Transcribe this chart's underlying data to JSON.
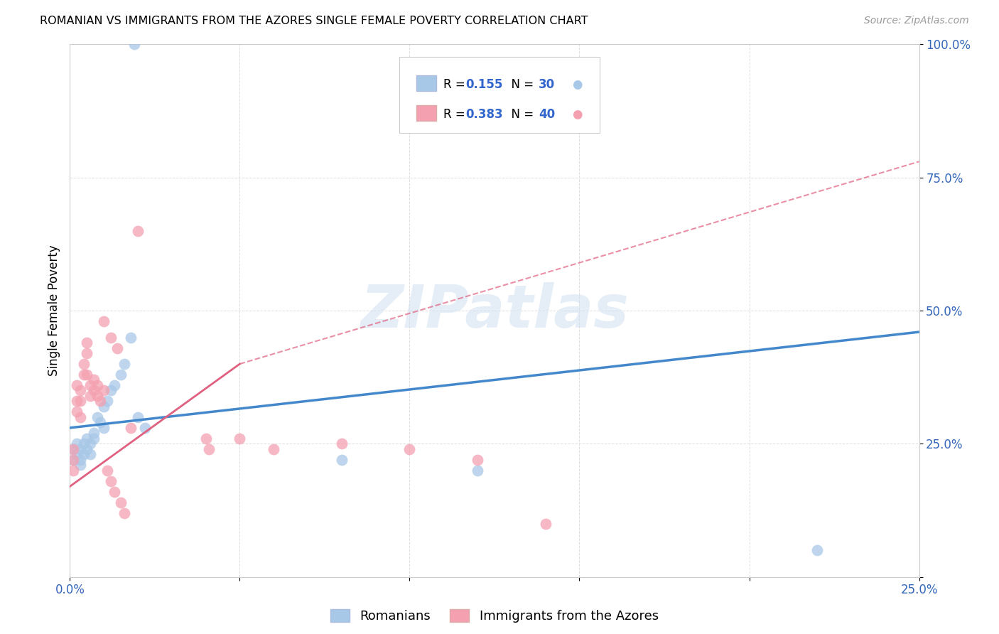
{
  "title": "ROMANIAN VS IMMIGRANTS FROM THE AZORES SINGLE FEMALE POVERTY CORRELATION CHART",
  "source": "Source: ZipAtlas.com",
  "ylabel": "Single Female Poverty",
  "xlim": [
    0.0,
    0.25
  ],
  "ylim": [
    0.0,
    1.0
  ],
  "xtick_positions": [
    0.0,
    0.05,
    0.1,
    0.15,
    0.2,
    0.25
  ],
  "xtick_labels": [
    "0.0%",
    "",
    "",
    "",
    "",
    "25.0%"
  ],
  "ytick_positions": [
    0.0,
    0.25,
    0.5,
    0.75,
    1.0
  ],
  "ytick_labels": [
    "",
    "25.0%",
    "50.0%",
    "75.0%",
    "100.0%"
  ],
  "blue_label": "Romanians",
  "pink_label": "Immigrants from the Azores",
  "blue_color": "#a8c8e8",
  "pink_color": "#f4a0b0",
  "trend_blue_color": "#4488cc",
  "trend_pink_color": "#e06080",
  "watermark_text": "ZIPatlas",
  "blue_x": [
    0.001,
    0.001,
    0.002,
    0.002,
    0.003,
    0.003,
    0.003,
    0.004,
    0.004,
    0.005,
    0.005,
    0.006,
    0.006,
    0.007,
    0.007,
    0.008,
    0.009,
    0.01,
    0.01,
    0.011,
    0.012,
    0.013,
    0.015,
    0.016,
    0.018,
    0.02,
    0.022,
    0.08,
    0.12,
    0.22
  ],
  "blue_y": [
    0.24,
    0.22,
    0.25,
    0.23,
    0.24,
    0.22,
    0.21,
    0.25,
    0.23,
    0.26,
    0.24,
    0.25,
    0.23,
    0.27,
    0.26,
    0.3,
    0.29,
    0.28,
    0.32,
    0.33,
    0.35,
    0.36,
    0.38,
    0.4,
    0.45,
    0.3,
    0.28,
    0.22,
    0.2,
    0.05
  ],
  "blue_outlier_x": [
    0.019
  ],
  "blue_outlier_y": [
    1.0
  ],
  "pink_x": [
    0.001,
    0.001,
    0.001,
    0.002,
    0.002,
    0.002,
    0.003,
    0.003,
    0.003,
    0.004,
    0.004,
    0.005,
    0.005,
    0.005,
    0.006,
    0.006,
    0.007,
    0.007,
    0.008,
    0.008,
    0.009,
    0.01,
    0.011,
    0.012,
    0.013,
    0.015,
    0.016,
    0.02,
    0.04,
    0.041,
    0.05,
    0.06,
    0.08,
    0.1,
    0.12,
    0.14,
    0.01,
    0.012,
    0.014,
    0.018
  ],
  "pink_y": [
    0.24,
    0.22,
    0.2,
    0.36,
    0.33,
    0.31,
    0.35,
    0.33,
    0.3,
    0.4,
    0.38,
    0.44,
    0.42,
    0.38,
    0.36,
    0.34,
    0.37,
    0.35,
    0.36,
    0.34,
    0.33,
    0.35,
    0.2,
    0.18,
    0.16,
    0.14,
    0.12,
    0.65,
    0.26,
    0.24,
    0.26,
    0.24,
    0.25,
    0.24,
    0.22,
    0.1,
    0.48,
    0.45,
    0.43,
    0.28
  ],
  "trend_blue_x0": 0.0,
  "trend_blue_y0": 0.28,
  "trend_blue_x1": 0.25,
  "trend_blue_y1": 0.46,
  "trend_pink_solid_x0": 0.0,
  "trend_pink_solid_y0": 0.17,
  "trend_pink_solid_x1": 0.05,
  "trend_pink_solid_y1": 0.4,
  "trend_pink_dash_x0": 0.05,
  "trend_pink_dash_y0": 0.4,
  "trend_pink_dash_x1": 0.25,
  "trend_pink_dash_y1": 0.78
}
